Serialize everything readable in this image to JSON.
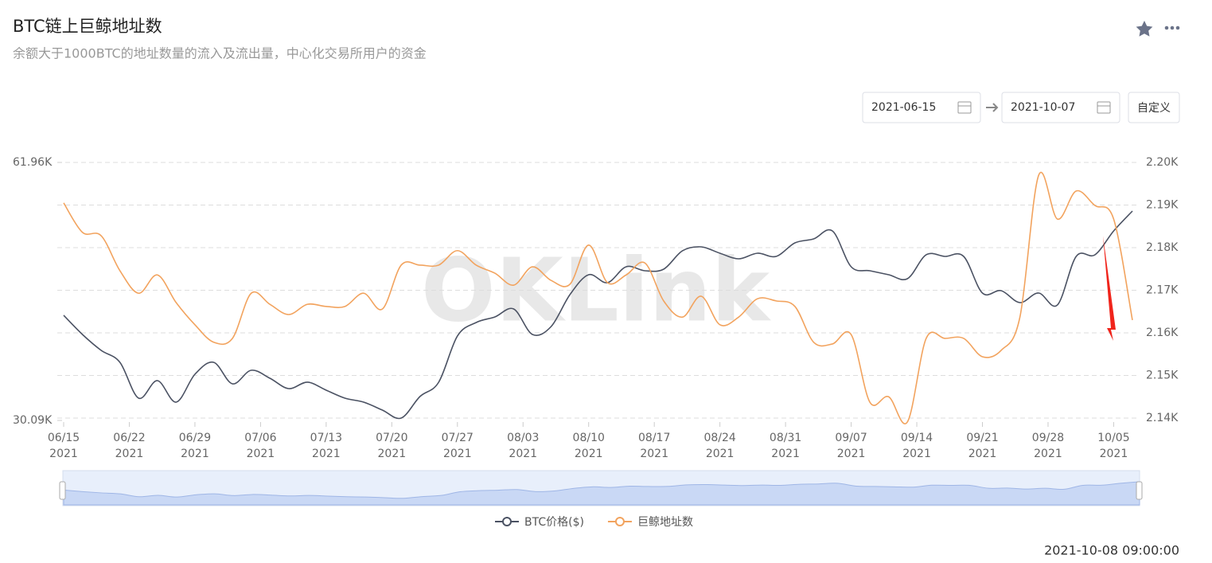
{
  "header": {
    "title": "BTC链上巨鲸地址数",
    "subtitle": "余额大于1000BTC的地址数量的流入及流出量，中心化交易所用户的资金"
  },
  "controls": {
    "start_date": "2021-06-15",
    "end_date": "2021-10-07",
    "custom_button": "自定义"
  },
  "watermark": "OKLink",
  "timestamp": "2021-10-08 09:00:00",
  "chart_data": {
    "type": "line",
    "x": [
      "2021-06-15",
      "2021-06-17",
      "2021-06-19",
      "2021-06-21",
      "2021-06-23",
      "2021-06-25",
      "2021-06-27",
      "2021-06-29",
      "2021-07-01",
      "2021-07-03",
      "2021-07-05",
      "2021-07-07",
      "2021-07-09",
      "2021-07-11",
      "2021-07-13",
      "2021-07-15",
      "2021-07-17",
      "2021-07-19",
      "2021-07-21",
      "2021-07-23",
      "2021-07-25",
      "2021-07-27",
      "2021-07-29",
      "2021-07-31",
      "2021-08-02",
      "2021-08-04",
      "2021-08-06",
      "2021-08-08",
      "2021-08-10",
      "2021-08-12",
      "2021-08-14",
      "2021-08-16",
      "2021-08-18",
      "2021-08-20",
      "2021-08-22",
      "2021-08-24",
      "2021-08-26",
      "2021-08-28",
      "2021-08-30",
      "2021-09-01",
      "2021-09-03",
      "2021-09-05",
      "2021-09-07",
      "2021-09-09",
      "2021-09-11",
      "2021-09-13",
      "2021-09-15",
      "2021-09-17",
      "2021-09-19",
      "2021-09-21",
      "2021-09-23",
      "2021-09-25",
      "2021-09-27",
      "2021-09-29",
      "2021-10-01",
      "2021-10-03",
      "2021-10-05",
      "2021-10-07"
    ],
    "series": [
      {
        "name": "BTC价格($)",
        "color": "#4b5263",
        "values": [
          43075,
          40714,
          38747,
          37272,
          32845,
          35009,
          32354,
          35796,
          37272,
          34616,
          36288,
          35304,
          34026,
          34813,
          33829,
          32845,
          32354,
          31370,
          30386,
          33042,
          34813,
          40518,
          42190,
          42878,
          43862,
          40714,
          41698,
          45632,
          48091,
          47108,
          49075,
          48583,
          48780,
          51042,
          51534,
          50747,
          50058,
          50747,
          50354,
          52026,
          52517,
          53501,
          49075,
          48583,
          48091,
          47599,
          50550,
          50354,
          50354,
          45829,
          46124,
          44649,
          45829,
          44354,
          50354,
          50550,
          53501,
          55960
        ]
      },
      {
        "name": "巨鲸地址数",
        "color": "#f2a35e",
        "axis": "y2",
        "values": [
          2190.5,
          2183.6,
          2182.8,
          2174.6,
          2169.3,
          2173.6,
          2167.1,
          2161.9,
          2157.8,
          2158.7,
          2169.3,
          2166.7,
          2164.3,
          2166.7,
          2166.2,
          2166.2,
          2169.3,
          2165.6,
          2175.9,
          2175.9,
          2175.9,
          2179.3,
          2175.9,
          2174,
          2171.2,
          2175.5,
          2172.3,
          2171.4,
          2180.6,
          2171.8,
          2173.6,
          2176.4,
          2167.5,
          2163.7,
          2168.6,
          2161.9,
          2163.7,
          2168,
          2167.5,
          2166.2,
          2157.8,
          2157.4,
          2159.6,
          2143.7,
          2145,
          2139.1,
          2158.7,
          2158.7,
          2158.7,
          2154.4,
          2155.9,
          2163.7,
          2197,
          2186.7,
          2193.3,
          2189.9,
          2186.7,
          2163
        ]
      }
    ],
    "xlim": [
      "2021-06-15",
      "2021-10-07"
    ],
    "xticks": [
      {
        "value": "2021-06-15",
        "label": "06/15",
        "year": "2021"
      },
      {
        "value": "2021-06-22",
        "label": "06/22",
        "year": "2021"
      },
      {
        "value": "2021-06-29",
        "label": "06/29",
        "year": "2021"
      },
      {
        "value": "2021-07-06",
        "label": "07/06",
        "year": "2021"
      },
      {
        "value": "2021-07-13",
        "label": "07/13",
        "year": "2021"
      },
      {
        "value": "2021-07-20",
        "label": "07/20",
        "year": "2021"
      },
      {
        "value": "2021-07-27",
        "label": "07/27",
        "year": "2021"
      },
      {
        "value": "2021-08-03",
        "label": "08/03",
        "year": "2021"
      },
      {
        "value": "2021-08-10",
        "label": "08/10",
        "year": "2021"
      },
      {
        "value": "2021-08-17",
        "label": "08/17",
        "year": "2021"
      },
      {
        "value": "2021-08-24",
        "label": "08/24",
        "year": "2021"
      },
      {
        "value": "2021-08-31",
        "label": "08/31",
        "year": "2021"
      },
      {
        "value": "2021-09-07",
        "label": "09/07",
        "year": "2021"
      },
      {
        "value": "2021-09-14",
        "label": "09/14",
        "year": "2021"
      },
      {
        "value": "2021-09-21",
        "label": "09/21",
        "year": "2021"
      },
      {
        "value": "2021-09-28",
        "label": "09/28",
        "year": "2021"
      },
      {
        "value": "2021-10-05",
        "label": "10/05",
        "year": "2021"
      }
    ],
    "ylim": [
      30090,
      61960
    ],
    "yticks": [
      {
        "value": 61960,
        "label": "61.96K"
      },
      {
        "value": 30090,
        "label": "30.09K"
      }
    ],
    "y2lim": [
      2140,
      2200
    ],
    "y2ticks": [
      {
        "value": 2140,
        "label": "2.14K"
      },
      {
        "value": 2150,
        "label": "2.15K"
      },
      {
        "value": 2160,
        "label": "2.16K"
      },
      {
        "value": 2170,
        "label": "2.17K"
      },
      {
        "value": 2180,
        "label": "2.18K"
      },
      {
        "value": 2190,
        "label": "2.19K"
      },
      {
        "value": 2200,
        "label": "2.20K"
      }
    ],
    "grid": true,
    "legend": "bottom"
  }
}
